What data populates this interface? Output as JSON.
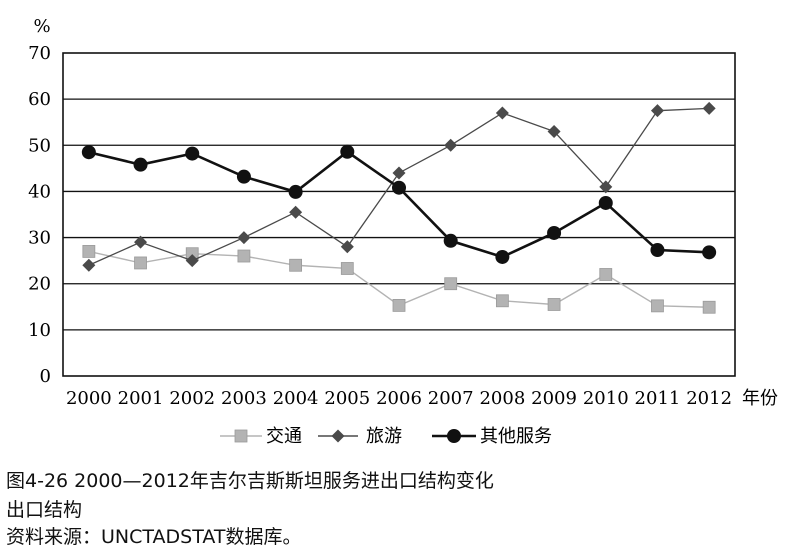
{
  "chart_data": {
    "type": "line",
    "y_unit_label": "%",
    "x_unit_label": "年份",
    "ylim": [
      0,
      70
    ],
    "yticks": [
      0,
      10,
      20,
      30,
      40,
      50,
      60,
      70
    ],
    "x": [
      "2000",
      "2001",
      "2002",
      "2003",
      "2004",
      "2005",
      "2006",
      "2007",
      "2008",
      "2009",
      "2010",
      "2011",
      "2012"
    ],
    "grid": "horizontal",
    "legend_position": "bottom",
    "series": [
      {
        "name": "交通",
        "marker": "square",
        "color": "#b3b3b3",
        "values": [
          27,
          24.5,
          26.5,
          26,
          24,
          23.3,
          15.3,
          20,
          16.3,
          15.5,
          22,
          15.2,
          14.9
        ]
      },
      {
        "name": "旅游",
        "marker": "diamond",
        "color": "#4a4a4a",
        "values": [
          24,
          29,
          25,
          30,
          35.5,
          28,
          44,
          50,
          57,
          53,
          41,
          57.5,
          58
        ]
      },
      {
        "name": "其他服务",
        "marker": "circle",
        "color": "#111111",
        "values": [
          48.5,
          45.8,
          48.2,
          43.2,
          39.9,
          48.6,
          40.8,
          29.3,
          25.8,
          31,
          37.5,
          27.3,
          26.8
        ]
      }
    ]
  },
  "caption": {
    "title": "图4-26  2000—2012年吉尔吉斯斯坦服务进出口结构变化",
    "subtitle": "出口结构",
    "source": "资料来源：UNCTADSTAT数据库。"
  }
}
